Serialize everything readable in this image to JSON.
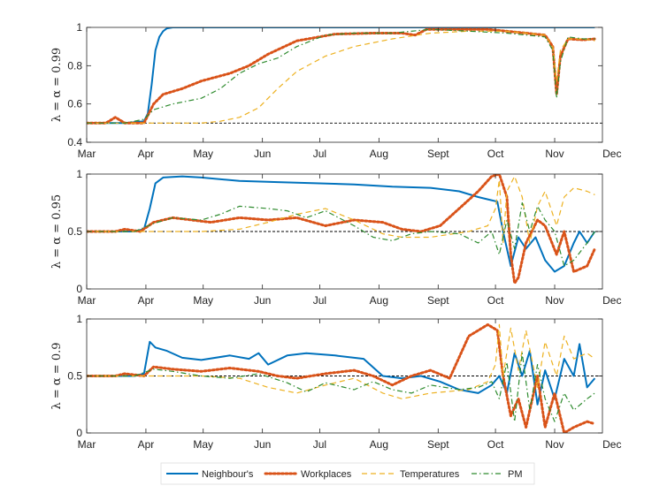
{
  "chart_data": [
    {
      "type": "line",
      "ylabel": "λ = α = 0.99",
      "ylim": [
        0.4,
        1
      ],
      "yticks": [
        "0.4",
        "0.6",
        "0.8",
        "1"
      ],
      "ytick_values": [
        0.4,
        0.6,
        0.8,
        1.0
      ],
      "xlim": [
        0,
        270
      ],
      "xticks": [
        "Mar",
        "Apr",
        "May",
        "Jun",
        "Jul",
        "Aug",
        "Sept",
        "Oct",
        "Nov",
        "Dec"
      ],
      "xtick_values": [
        0,
        31,
        61,
        92,
        122,
        153,
        184,
        214,
        245,
        275
      ],
      "reference_line": 0.5,
      "series": [
        {
          "name": "Neighbour's",
          "x": [
            0,
            20,
            30,
            32,
            34,
            36,
            38,
            40,
            42,
            45,
            60,
            90,
            150,
            215,
            240,
            244,
            246,
            248,
            252,
            260,
            266
          ],
          "y": [
            0.5,
            0.5,
            0.51,
            0.55,
            0.7,
            0.88,
            0.95,
            0.98,
            0.995,
            1.0,
            1.0,
            1.0,
            1.0,
            1.0,
            1.0,
            1.0,
            1.0,
            1.0,
            1.0,
            1.0,
            1.0
          ]
        },
        {
          "name": "Workplaces",
          "x": [
            0,
            10,
            15,
            20,
            30,
            35,
            40,
            50,
            60,
            75,
            85,
            95,
            110,
            130,
            150,
            165,
            172,
            178,
            190,
            210,
            230,
            240,
            244,
            246,
            248,
            252,
            260,
            266
          ],
          "y": [
            0.5,
            0.5,
            0.53,
            0.5,
            0.5,
            0.6,
            0.65,
            0.68,
            0.72,
            0.76,
            0.8,
            0.86,
            0.93,
            0.965,
            0.97,
            0.97,
            0.96,
            0.99,
            0.99,
            0.99,
            0.97,
            0.96,
            0.9,
            0.65,
            0.85,
            0.94,
            0.935,
            0.94
          ]
        },
        {
          "name": "Temperatures",
          "x": [
            0,
            30,
            40,
            50,
            60,
            70,
            80,
            90,
            100,
            110,
            125,
            140,
            160,
            180,
            200,
            220,
            240,
            244,
            246,
            248,
            252,
            260,
            266
          ],
          "y": [
            0.5,
            0.5,
            0.5,
            0.5,
            0.5,
            0.51,
            0.53,
            0.58,
            0.68,
            0.77,
            0.85,
            0.9,
            0.94,
            0.97,
            0.98,
            0.98,
            0.96,
            0.9,
            0.72,
            0.88,
            0.94,
            0.94,
            0.93
          ]
        },
        {
          "name": "PM",
          "x": [
            0,
            20,
            30,
            35,
            45,
            60,
            70,
            80,
            90,
            100,
            110,
            125,
            140,
            160,
            180,
            200,
            220,
            240,
            244,
            246,
            248,
            252,
            260,
            266
          ],
          "y": [
            0.5,
            0.5,
            0.52,
            0.57,
            0.6,
            0.63,
            0.68,
            0.76,
            0.81,
            0.84,
            0.9,
            0.96,
            0.97,
            0.97,
            0.99,
            0.98,
            0.97,
            0.95,
            0.88,
            0.63,
            0.82,
            0.95,
            0.94,
            0.94
          ]
        }
      ]
    },
    {
      "type": "line",
      "ylabel": "λ = α = 0.95",
      "ylim": [
        0,
        1
      ],
      "yticks": [
        "0",
        "0.5",
        "1"
      ],
      "ytick_values": [
        0,
        0.5,
        1
      ],
      "xlim": [
        0,
        270
      ],
      "xticks": [
        "Mar",
        "Apr",
        "May",
        "Jun",
        "Jul",
        "Aug",
        "Sept",
        "Oct",
        "Nov",
        "Dec"
      ],
      "xtick_values": [
        0,
        31,
        61,
        92,
        122,
        153,
        184,
        214,
        245,
        275
      ],
      "reference_line": 0.5,
      "series": [
        {
          "name": "Neighbour's",
          "x": [
            0,
            25,
            30,
            33,
            36,
            40,
            50,
            60,
            80,
            100,
            120,
            140,
            160,
            180,
            195,
            205,
            210,
            215,
            218,
            222,
            226,
            230,
            235,
            240,
            245,
            250,
            255,
            258,
            262,
            266
          ],
          "y": [
            0.5,
            0.5,
            0.52,
            0.7,
            0.92,
            0.97,
            0.98,
            0.97,
            0.94,
            0.93,
            0.92,
            0.91,
            0.89,
            0.88,
            0.85,
            0.8,
            0.78,
            0.76,
            0.5,
            0.2,
            0.45,
            0.35,
            0.45,
            0.25,
            0.15,
            0.2,
            0.4,
            0.5,
            0.4,
            0.5
          ]
        },
        {
          "name": "Workplaces",
          "x": [
            0,
            15,
            20,
            28,
            35,
            45,
            55,
            65,
            80,
            95,
            110,
            125,
            140,
            155,
            165,
            175,
            185,
            195,
            205,
            212,
            216,
            220,
            222,
            224,
            226,
            230,
            236,
            240,
            246,
            250,
            255,
            262,
            266
          ],
          "y": [
            0.5,
            0.5,
            0.52,
            0.5,
            0.58,
            0.62,
            0.6,
            0.58,
            0.62,
            0.6,
            0.62,
            0.55,
            0.6,
            0.58,
            0.52,
            0.5,
            0.55,
            0.7,
            0.85,
            0.98,
            1.0,
            0.8,
            0.3,
            0.05,
            0.1,
            0.4,
            0.6,
            0.55,
            0.3,
            0.5,
            0.15,
            0.2,
            0.35
          ]
        },
        {
          "name": "Temperatures",
          "x": [
            0,
            30,
            60,
            80,
            95,
            110,
            125,
            140,
            155,
            165,
            180,
            200,
            210,
            214,
            216,
            218,
            220,
            224,
            228,
            232,
            236,
            240,
            246,
            250,
            255,
            262,
            266
          ],
          "y": [
            0.5,
            0.5,
            0.5,
            0.52,
            0.58,
            0.65,
            0.7,
            0.6,
            0.48,
            0.45,
            0.45,
            0.5,
            0.55,
            0.7,
            0.95,
            0.4,
            0.85,
            0.98,
            0.8,
            0.4,
            0.72,
            0.85,
            0.55,
            0.8,
            0.88,
            0.85,
            0.82
          ]
        },
        {
          "name": "PM",
          "x": [
            0,
            25,
            35,
            45,
            60,
            70,
            80,
            95,
            105,
            115,
            125,
            140,
            150,
            160,
            170,
            180,
            195,
            205,
            212,
            216,
            220,
            224,
            228,
            232,
            236,
            240,
            245,
            250,
            255,
            262,
            266
          ],
          "y": [
            0.5,
            0.5,
            0.57,
            0.62,
            0.6,
            0.65,
            0.72,
            0.7,
            0.68,
            0.62,
            0.68,
            0.55,
            0.45,
            0.42,
            0.48,
            0.5,
            0.48,
            0.4,
            0.5,
            0.3,
            0.6,
            0.35,
            0.75,
            0.5,
            0.72,
            0.6,
            0.5,
            0.2,
            0.25,
            0.4,
            0.5
          ]
        }
      ]
    },
    {
      "type": "line",
      "ylabel": "λ = α = 0.9",
      "ylim": [
        0,
        1
      ],
      "yticks": [
        "0",
        "0.5",
        "1"
      ],
      "ytick_values": [
        0,
        0.5,
        1
      ],
      "xlim": [
        0,
        270
      ],
      "xticks": [
        "Mar",
        "Apr",
        "May",
        "Jun",
        "Jul",
        "Aug",
        "Sept",
        "Oct",
        "Nov",
        "Dec"
      ],
      "xtick_values": [
        0,
        31,
        61,
        92,
        122,
        153,
        184,
        214,
        245,
        275
      ],
      "reference_line": 0.5,
      "series": [
        {
          "name": "Neighbour's",
          "x": [
            0,
            25,
            30,
            33,
            36,
            42,
            50,
            60,
            75,
            85,
            90,
            95,
            105,
            115,
            130,
            145,
            155,
            165,
            175,
            185,
            195,
            205,
            212,
            216,
            220,
            224,
            228,
            232,
            236,
            240,
            245,
            250,
            255,
            258,
            262,
            266
          ],
          "y": [
            0.5,
            0.5,
            0.52,
            0.8,
            0.75,
            0.72,
            0.66,
            0.64,
            0.68,
            0.65,
            0.7,
            0.6,
            0.68,
            0.7,
            0.68,
            0.65,
            0.5,
            0.48,
            0.5,
            0.45,
            0.38,
            0.35,
            0.42,
            0.5,
            0.35,
            0.7,
            0.5,
            0.72,
            0.25,
            0.55,
            0.3,
            0.65,
            0.5,
            0.78,
            0.4,
            0.48
          ]
        },
        {
          "name": "Workplaces",
          "x": [
            0,
            15,
            20,
            30,
            35,
            45,
            60,
            75,
            90,
            100,
            110,
            125,
            140,
            150,
            160,
            170,
            180,
            190,
            200,
            210,
            215,
            218,
            222,
            226,
            230,
            236,
            240,
            245,
            250,
            255,
            262,
            266
          ],
          "y": [
            0.5,
            0.5,
            0.52,
            0.5,
            0.58,
            0.56,
            0.54,
            0.57,
            0.54,
            0.5,
            0.48,
            0.52,
            0.55,
            0.5,
            0.42,
            0.5,
            0.55,
            0.48,
            0.85,
            0.95,
            0.9,
            0.5,
            0.15,
            0.3,
            0.05,
            0.5,
            0.05,
            0.35,
            0.0,
            0.05,
            0.1,
            0.08
          ]
        },
        {
          "name": "Temperatures",
          "x": [
            0,
            30,
            60,
            80,
            95,
            110,
            125,
            140,
            155,
            165,
            180,
            200,
            210,
            214,
            216,
            218,
            222,
            226,
            230,
            236,
            240,
            246,
            250,
            255,
            262,
            266
          ],
          "y": [
            0.5,
            0.5,
            0.5,
            0.48,
            0.4,
            0.35,
            0.42,
            0.48,
            0.35,
            0.3,
            0.35,
            0.38,
            0.45,
            0.6,
            0.95,
            0.5,
            0.92,
            0.55,
            0.9,
            0.4,
            0.8,
            0.5,
            0.85,
            0.65,
            0.7,
            0.65
          ]
        },
        {
          "name": "PM",
          "x": [
            0,
            25,
            35,
            45,
            60,
            75,
            90,
            105,
            115,
            125,
            140,
            150,
            160,
            170,
            180,
            195,
            205,
            212,
            216,
            220,
            224,
            228,
            232,
            236,
            240,
            245,
            250,
            255,
            262,
            266
          ],
          "y": [
            0.5,
            0.5,
            0.56,
            0.54,
            0.5,
            0.48,
            0.52,
            0.44,
            0.36,
            0.44,
            0.38,
            0.45,
            0.38,
            0.35,
            0.42,
            0.38,
            0.4,
            0.45,
            0.3,
            0.62,
            0.1,
            0.7,
            0.2,
            0.6,
            0.3,
            0.1,
            0.35,
            0.2,
            0.3,
            0.35
          ]
        }
      ]
    }
  ],
  "legend": {
    "items": [
      {
        "name": "Neighbour's",
        "color": "#0072BD",
        "style": "solid"
      },
      {
        "name": "Workplaces",
        "color": "#D95319",
        "style": "dotted"
      },
      {
        "name": "Temperatures",
        "color": "#EDB120",
        "style": "dashed"
      },
      {
        "name": "PM",
        "color": "#2E8B2E",
        "style": "dashdot"
      }
    ]
  },
  "colors": {
    "Neighbour's": "#0072BD",
    "Workplaces": "#D95319",
    "Temperatures": "#EDB120",
    "PM": "#2E8B2E",
    "reference": "#000000"
  }
}
